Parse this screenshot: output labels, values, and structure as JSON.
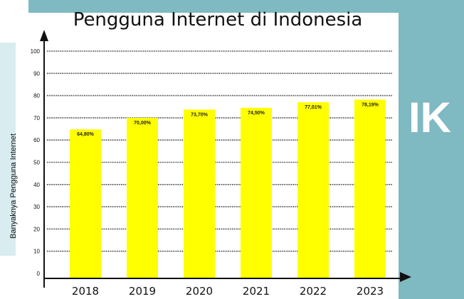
{
  "colors": {
    "background": "#ffffff",
    "watermark": "#7fb9c2",
    "bar": "#ffff00",
    "axis": "#111111"
  },
  "watermark": {
    "text": "IK"
  },
  "chart_data": {
    "type": "bar",
    "title": "Pengguna Internet di Indonesia",
    "xlabel": "",
    "ylabel": "Banyaknya Pengguna Internet",
    "categories": [
      "2018",
      "2019",
      "2020",
      "2021",
      "2022",
      "2023"
    ],
    "values": [
      64.8,
      70.0,
      73.7,
      74.5,
      77.01,
      78.19
    ],
    "value_labels": [
      "64,80%",
      "70,00%",
      "73,70%",
      "74,50%",
      "77,01%",
      "78,19%"
    ],
    "ylim": [
      0,
      100
    ],
    "yticks": [
      0,
      10,
      20,
      30,
      40,
      50,
      60,
      70,
      80,
      90,
      100
    ],
    "grid": true,
    "grid_style": "dotted",
    "legend": "none"
  }
}
